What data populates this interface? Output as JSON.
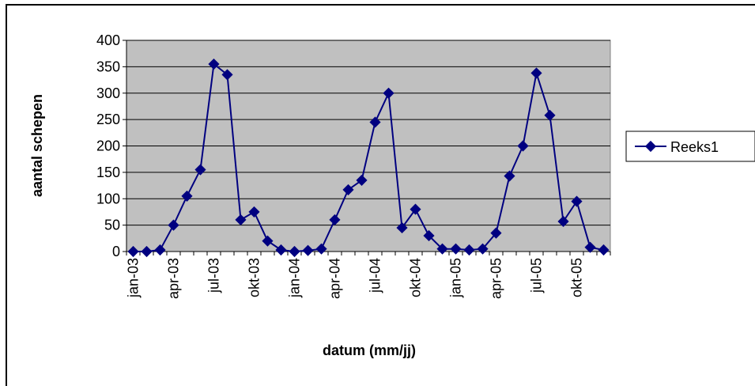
{
  "chart_data": {
    "type": "line",
    "title": "",
    "xlabel": "datum (mm/jj)",
    "ylabel": "aantal schepen",
    "ylim": [
      0,
      400
    ],
    "yticks": [
      "0",
      "50",
      "100",
      "150",
      "200",
      "250",
      "300",
      "350",
      "400"
    ],
    "xtick_labels": [
      "jan-03",
      "apr-03",
      "jul-03",
      "okt-03",
      "jan-04",
      "apr-04",
      "jul-04",
      "okt-04",
      "jan-05",
      "apr-05",
      "jul-05",
      "okt-05"
    ],
    "categories": [
      "jan-03",
      "feb-03",
      "mrt-03",
      "apr-03",
      "mei-03",
      "jun-03",
      "jul-03",
      "aug-03",
      "sep-03",
      "okt-03",
      "nov-03",
      "dec-03",
      "jan-04",
      "feb-04",
      "mrt-04",
      "apr-04",
      "mei-04",
      "jun-04",
      "jul-04",
      "aug-04",
      "sep-04",
      "okt-04",
      "nov-04",
      "dec-04",
      "jan-05",
      "feb-05",
      "mrt-05",
      "apr-05",
      "mei-05",
      "jun-05",
      "jul-05",
      "aug-05",
      "sep-05",
      "okt-05",
      "nov-05",
      "dec-05"
    ],
    "series": [
      {
        "name": "Reeks1",
        "color": "#000080",
        "values": [
          0,
          0,
          3,
          50,
          105,
          155,
          355,
          335,
          60,
          75,
          20,
          3,
          0,
          2,
          5,
          60,
          117,
          135,
          245,
          300,
          45,
          80,
          30,
          5,
          5,
          3,
          5,
          35,
          143,
          200,
          338,
          258,
          57,
          95,
          8,
          3
        ]
      }
    ],
    "grid": true,
    "plot_background": "#c0c0c0",
    "legend_position": "right"
  }
}
